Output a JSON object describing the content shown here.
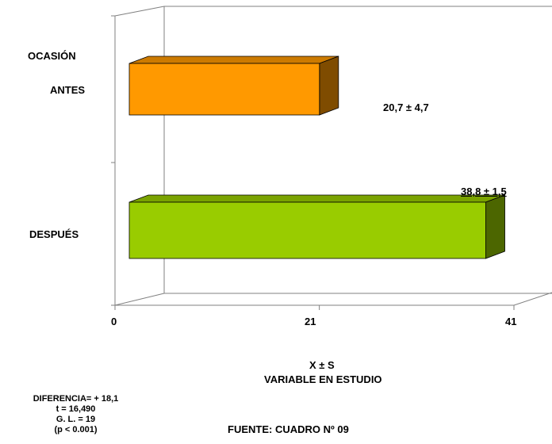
{
  "chart_data": {
    "type": "bar",
    "orientation": "horizontal",
    "style": "3d",
    "y_axis_title": "OCASIÓN",
    "categories": [
      "ANTES",
      "DESPUÉS"
    ],
    "values": [
      20.7,
      38.8
    ],
    "sd": [
      4.7,
      1.5
    ],
    "data_labels": [
      "20,7 ± 4,7",
      "38,8 ± 1,5"
    ],
    "xlim": [
      0,
      41
    ],
    "x_ticks": [
      "0",
      "21",
      "41"
    ],
    "x_tick_values": [
      0,
      21,
      41
    ],
    "xlabel_line1": "X ± S",
    "xlabel_line2": "VARIABLE EN ESTUDIO",
    "grid": false,
    "colors": {
      "antes_front": "#ff9900",
      "antes_top": "#cc7a00",
      "antes_side": "#7f4c00",
      "despues_front": "#99cc00",
      "despues_top": "#7aa300",
      "despues_side": "#4c6600",
      "axis": "#808080"
    }
  },
  "stats": {
    "line1": "DIFERENCIA= + 18,1",
    "line2": "t =  16,490",
    "line3": "G. L. = 19",
    "line4": "(p < 0.001)"
  },
  "source": "FUENTE: CUADRO Nº 09"
}
